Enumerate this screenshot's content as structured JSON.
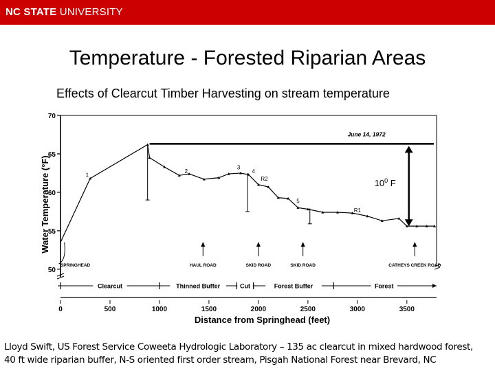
{
  "header": {
    "logo_bold": "NC STATE",
    "logo_rest": " UNIVERSITY",
    "bar_color": "#cc0000"
  },
  "slide": {
    "title": "Temperature - Forested Riparian Areas",
    "subtitle": "Effects of Clearcut Timber Harvesting on stream temperature",
    "caption_line1": "Lloyd Swift, US Forest Service Coweeta Hydrologic Laboratory – 135 ac clearcut in mixed hardwood forest,",
    "caption_line2": "40 ft wide riparian buffer, N-S oriented first order stream, Pisgah National Forest near Brevard, NC"
  },
  "chart_data": {
    "type": "line",
    "xlabel": "Distance  from  Springhead   (feet)",
    "ylabel": "Water Temperature   (°F)",
    "xlim": [
      0,
      3800
    ],
    "ylim": [
      49,
      70
    ],
    "x_ticks": [
      0,
      500,
      1000,
      1500,
      2000,
      2500,
      3000,
      3500
    ],
    "y_ticks": [
      50,
      55,
      60,
      65,
      70
    ],
    "date_label": "June 14, 1972",
    "difference_label": "10",
    "difference_sup": "0",
    "difference_unit": " F",
    "reference_temp": 66.3,
    "difference_bottom": 55.5,
    "series": [
      {
        "values": [
          {
            "x": 0,
            "y": 53.5
          },
          {
            "x": 300,
            "y": 61.8
          },
          {
            "x": 880,
            "y": 66.2
          },
          {
            "x": 900,
            "y": 64.5
          },
          {
            "x": 1050,
            "y": 63.3
          },
          {
            "x": 1200,
            "y": 62.2
          },
          {
            "x": 1300,
            "y": 62.4
          },
          {
            "x": 1450,
            "y": 61.7
          },
          {
            "x": 1600,
            "y": 61.9
          },
          {
            "x": 1700,
            "y": 62.4
          },
          {
            "x": 1820,
            "y": 62.5
          },
          {
            "x": 1900,
            "y": 62.3
          },
          {
            "x": 2000,
            "y": 61.0
          },
          {
            "x": 2100,
            "y": 60.7
          },
          {
            "x": 2200,
            "y": 59.3
          },
          {
            "x": 2300,
            "y": 59.2
          },
          {
            "x": 2400,
            "y": 58.0
          },
          {
            "x": 2500,
            "y": 57.8
          },
          {
            "x": 2650,
            "y": 57.4
          },
          {
            "x": 2800,
            "y": 57.4
          },
          {
            "x": 2950,
            "y": 57.3
          },
          {
            "x": 3100,
            "y": 56.9
          },
          {
            "x": 3250,
            "y": 56.3
          },
          {
            "x": 3420,
            "y": 56.6
          },
          {
            "x": 3500,
            "y": 55.6
          },
          {
            "x": 3600,
            "y": 55.6
          },
          {
            "x": 3700,
            "y": 55.6
          },
          {
            "x": 3780,
            "y": 55.6
          }
        ]
      }
    ],
    "drops": [
      {
        "x": 880,
        "top": 66.2,
        "bottom": 59.0
      },
      {
        "x": 1890,
        "top": 62.5,
        "bottom": 57.5
      },
      {
        "x": 2520,
        "top": 57.9,
        "bottom": 55.9
      }
    ],
    "point_labels": [
      {
        "text": "1",
        "x": 270,
        "y": 62.0
      },
      {
        "text": "2",
        "x": 1270,
        "y": 62.5
      },
      {
        "text": "3",
        "x": 1800,
        "y": 63.0
      },
      {
        "text": "4",
        "x": 1950,
        "y": 62.5
      },
      {
        "text": "R2",
        "x": 2060,
        "y": 61.5
      },
      {
        "text": "5",
        "x": 2400,
        "y": 58.6
      },
      {
        "text": "R1",
        "x": 3000,
        "y": 57.4
      }
    ],
    "site_markers": [
      {
        "label": "SPRINGHEAD",
        "x": 150,
        "arrow": false
      },
      {
        "label": "HAUL ROAD",
        "x": 1440,
        "arrow": true
      },
      {
        "label": "SKID ROAD",
        "x": 2000,
        "arrow": true
      },
      {
        "label": "SKID ROAD",
        "x": 2450,
        "arrow": true
      },
      {
        "label": "CATHEYS CREEK ROAD",
        "x": 3580,
        "arrow": true
      }
    ],
    "bands": [
      {
        "label": "Clearcut",
        "from": 0,
        "to": 1000
      },
      {
        "label": "Thinned Buffer",
        "from": 1000,
        "to": 1780
      },
      {
        "label": "Cut",
        "from": 1780,
        "to": 1950
      },
      {
        "label": "Forest  Buffer",
        "from": 1950,
        "to": 2760
      },
      {
        "label": "Forest",
        "from": 2760,
        "to": 3780
      }
    ]
  }
}
